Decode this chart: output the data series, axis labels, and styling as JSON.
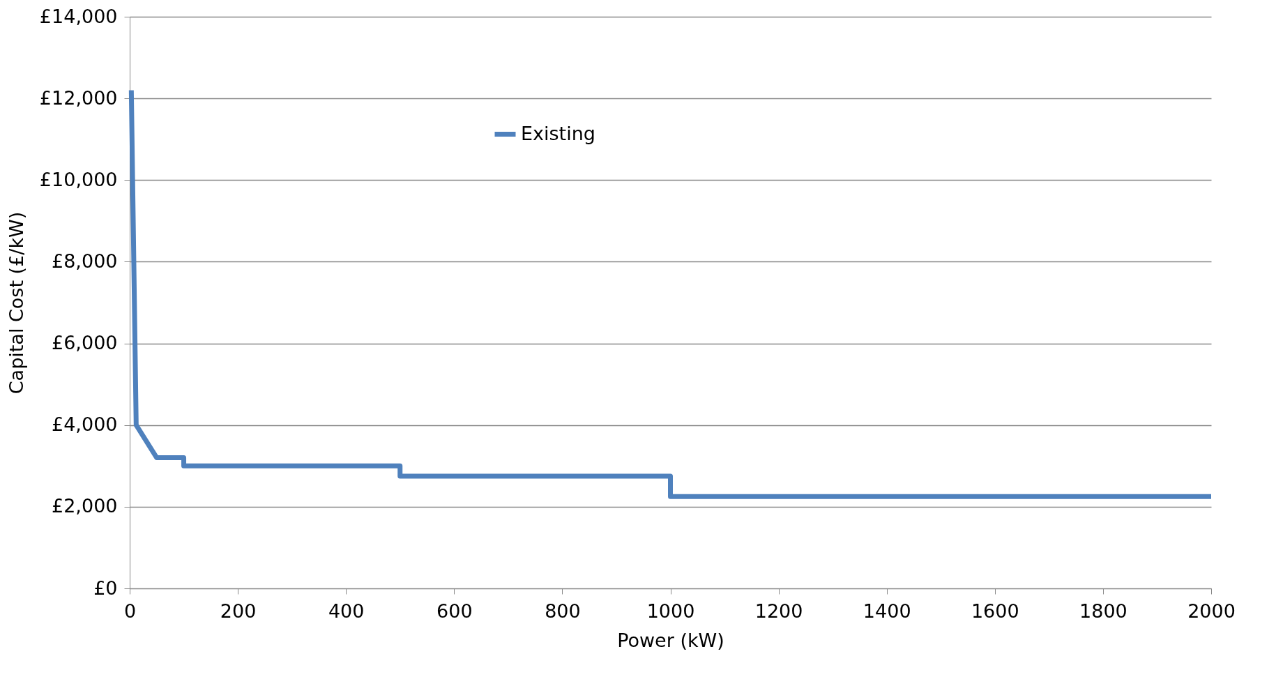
{
  "chart_data": {
    "type": "line",
    "xlabel": "Power (kW)",
    "ylabel": "Capital Cost (£/kW)",
    "xlim": [
      0,
      2000
    ],
    "xticks": [
      0,
      200,
      400,
      600,
      800,
      1000,
      1200,
      1400,
      1600,
      1800,
      2000
    ],
    "ylim": [
      0,
      14000
    ],
    "yticks": [
      {
        "value": 0,
        "label": "£0"
      },
      {
        "value": 2000,
        "label": "£2,000"
      },
      {
        "value": 4000,
        "label": "£4,000"
      },
      {
        "value": 6000,
        "label": "£6,000"
      },
      {
        "value": 8000,
        "label": "£8,000"
      },
      {
        "value": 10000,
        "label": "£10,000"
      },
      {
        "value": 12000,
        "label": "£12,000"
      },
      {
        "value": 14000,
        "label": "£14,000"
      }
    ],
    "grid": "y",
    "legend": "top",
    "line_style": "solid",
    "marker": "none",
    "series": [
      {
        "name": "Existing",
        "color": "#4f81bd",
        "x": [
          3,
          12,
          50,
          100,
          100,
          500,
          500,
          1000,
          1000,
          2000
        ],
        "values": [
          12200,
          4000,
          3200,
          3200,
          3000,
          3000,
          2750,
          2750,
          2250,
          2250
        ]
      }
    ]
  }
}
